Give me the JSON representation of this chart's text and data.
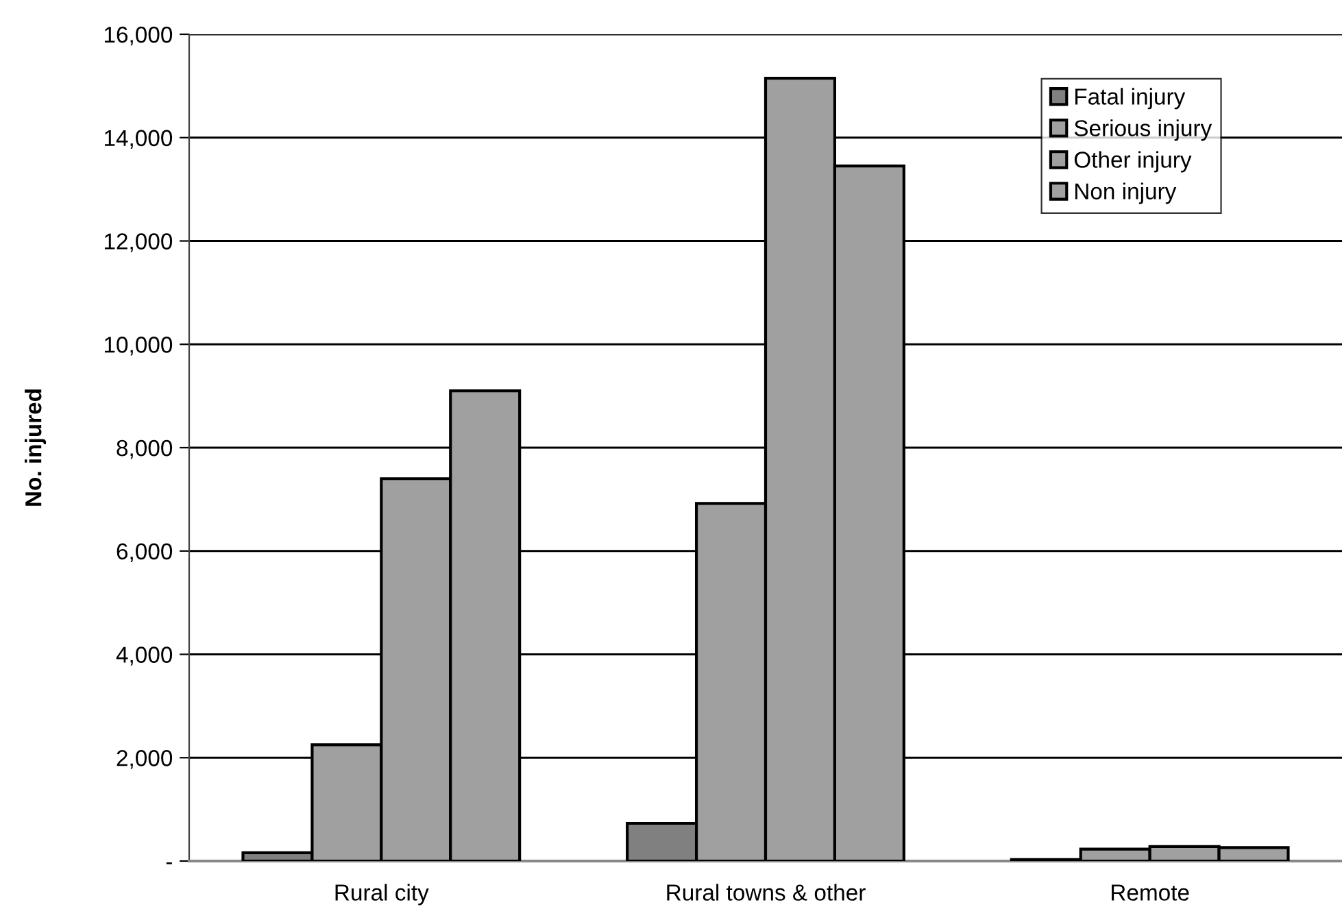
{
  "chart_data": {
    "type": "bar",
    "ylabel": "No. injured",
    "categories": [
      "Rural city",
      "Rural towns & other",
      "Remote"
    ],
    "series": [
      {
        "name": "Fatal injury",
        "color": "#808080",
        "values": [
          160,
          730,
          30
        ]
      },
      {
        "name": "Serious injury",
        "color": "#a0a0a0",
        "values": [
          2250,
          6920,
          230
        ]
      },
      {
        "name": "Other injury",
        "color": "#a0a0a0",
        "values": [
          7400,
          15150,
          280
        ]
      },
      {
        "name": "Non injury",
        "color": "#a0a0a0",
        "values": [
          9100,
          13450,
          260
        ]
      }
    ],
    "ylim": [
      0,
      16000
    ],
    "yticks": [
      {
        "value": 0,
        "label": "-"
      },
      {
        "value": 2000,
        "label": "2,000"
      },
      {
        "value": 4000,
        "label": "4,000"
      },
      {
        "value": 6000,
        "label": "6,000"
      },
      {
        "value": 8000,
        "label": "8,000"
      },
      {
        "value": 10000,
        "label": "10,000"
      },
      {
        "value": 12000,
        "label": "12,000"
      },
      {
        "value": 14000,
        "label": "14,000"
      },
      {
        "value": 16000,
        "label": "16,000"
      }
    ],
    "grid": "y",
    "legend": "top right"
  }
}
